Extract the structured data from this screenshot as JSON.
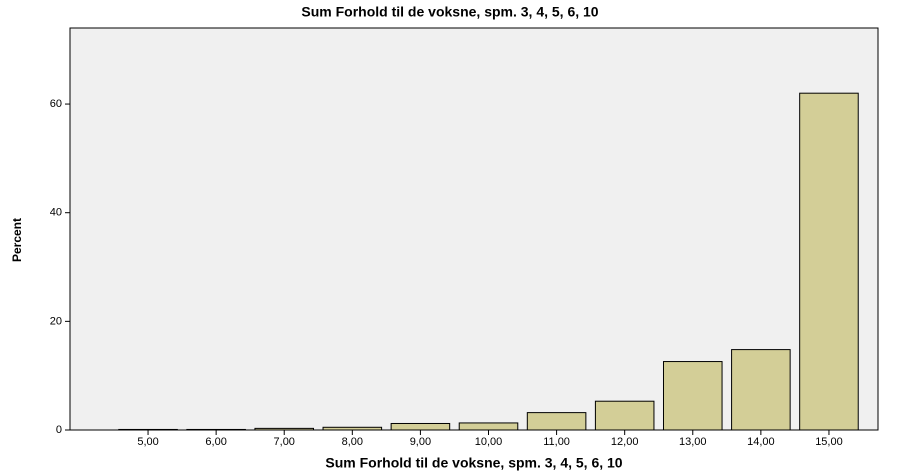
{
  "chart_data": {
    "type": "bar",
    "title": "Sum Forhold til de voksne, spm. 3, 4, 5, 6, 10",
    "x_label": "Sum Forhold til de voksne, spm. 3, 4, 5, 6, 10",
    "y_label": "Percent",
    "categories": [
      "5,00",
      "6,00",
      "7,00",
      "8,00",
      "9,00",
      "10,00",
      "11,00",
      "12,00",
      "13,00",
      "14,00",
      "15,00"
    ],
    "values": [
      0.1,
      0.1,
      0.3,
      0.5,
      1.2,
      1.3,
      3.2,
      5.3,
      12.6,
      14.8,
      62
    ],
    "color": "#d3ce97",
    "ylim": [
      0,
      74
    ],
    "yticks": [
      0,
      20,
      40,
      60
    ],
    "grid": false
  }
}
